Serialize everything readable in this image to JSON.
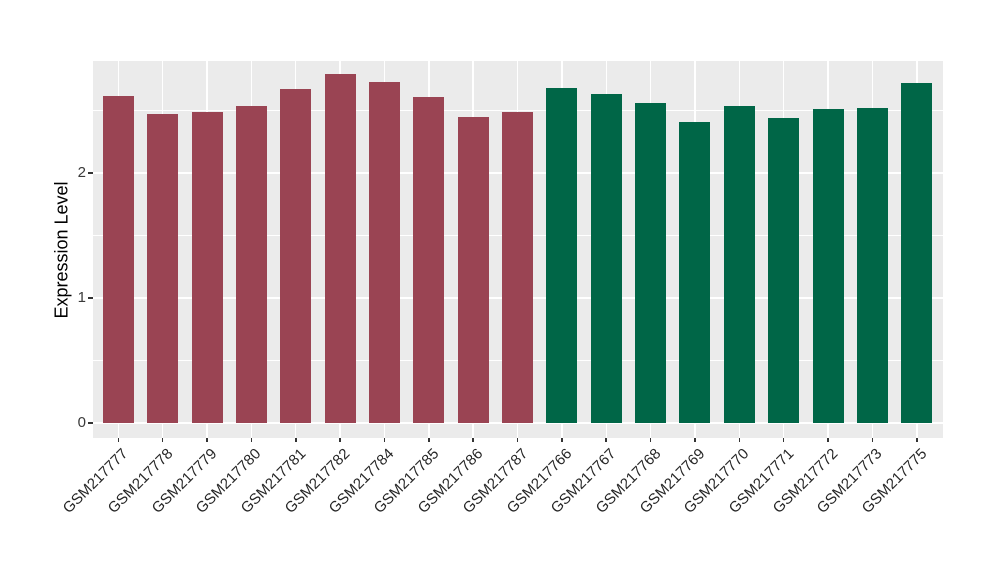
{
  "chart_data": {
    "type": "bar",
    "title": "",
    "xlabel": "",
    "ylabel": "Expression Level",
    "ylim": [
      0,
      2.89
    ],
    "yticks": [
      0,
      1,
      2
    ],
    "yticks_minor": [
      0.5,
      1.5,
      2.5
    ],
    "grid": "white major and minor horizontal lines, white vertical line at each category, on grey panel",
    "legend_position": "none",
    "panel_bg": "#EBEBEB",
    "grid_color": "#FFFFFF",
    "axis_text_color": "#3a3a3a",
    "series": [
      {
        "name": "group-1-maroon",
        "color": "#9A4453",
        "categories": [
          "GSM217777",
          "GSM217778",
          "GSM217779",
          "GSM217780",
          "GSM217781",
          "GSM217782",
          "GSM217784",
          "GSM217785",
          "GSM217786",
          "GSM217787"
        ],
        "values": [
          2.62,
          2.47,
          2.49,
          2.54,
          2.67,
          2.79,
          2.73,
          2.61,
          2.45,
          2.49
        ]
      },
      {
        "name": "group-2-green",
        "color": "#006647",
        "categories": [
          "GSM217766",
          "GSM217767",
          "GSM217768",
          "GSM217769",
          "GSM217770",
          "GSM217771",
          "GSM217772",
          "GSM217773",
          "GSM217775"
        ],
        "values": [
          2.68,
          2.63,
          2.56,
          2.41,
          2.54,
          2.44,
          2.51,
          2.52,
          2.72
        ]
      }
    ]
  }
}
